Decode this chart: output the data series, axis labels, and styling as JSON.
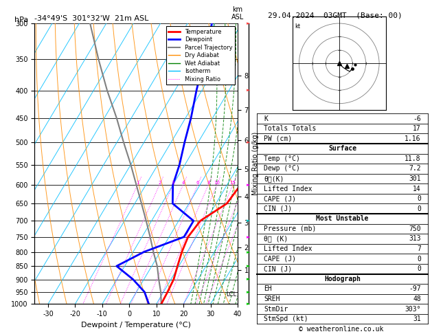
{
  "title_left": "-34°49'S  301°32'W  21m ASL",
  "title_right": "29.04.2024  03GMT  (Base: 00)",
  "xlabel": "Dewpoint / Temperature (°C)",
  "ylabel_left": "hPa",
  "pressure_levels": [
    300,
    350,
    400,
    450,
    500,
    550,
    600,
    650,
    700,
    750,
    800,
    850,
    900,
    950,
    1000
  ],
  "x_ticks": [
    -30,
    -20,
    -10,
    0,
    10,
    20,
    30,
    40
  ],
  "legend_items": [
    {
      "label": "Temperature",
      "color": "#ff0000",
      "lw": 2,
      "ls": "-"
    },
    {
      "label": "Dewpoint",
      "color": "#0000ff",
      "lw": 2,
      "ls": "-"
    },
    {
      "label": "Parcel Trajectory",
      "color": "#808080",
      "lw": 1.5,
      "ls": "-"
    },
    {
      "label": "Dry Adiabat",
      "color": "#ff8c00",
      "lw": 1,
      "ls": "-"
    },
    {
      "label": "Wet Adiabat",
      "color": "#008000",
      "lw": 1,
      "ls": "-"
    },
    {
      "label": "Isotherm",
      "color": "#00bfff",
      "lw": 1,
      "ls": "-"
    },
    {
      "label": "Mixing Ratio",
      "color": "#ff00ff",
      "lw": 0.8,
      "ls": ":"
    }
  ],
  "temperature_profile": {
    "pressure": [
      1000,
      950,
      900,
      850,
      800,
      750,
      700,
      650,
      600,
      550,
      500,
      450,
      400,
      350,
      300
    ],
    "temp": [
      11.8,
      11.5,
      11.0,
      9.5,
      8.0,
      7.0,
      8.0,
      14.0,
      15.0,
      14.0,
      12.0,
      8.0,
      3.0,
      -2.0,
      -8.0
    ]
  },
  "dewpoint_profile": {
    "pressure": [
      1000,
      950,
      900,
      850,
      800,
      750,
      700,
      650,
      600,
      550,
      500,
      450,
      400,
      350,
      300
    ],
    "dewp": [
      7.2,
      3.0,
      -4.0,
      -13.0,
      -6.0,
      5.5,
      5.5,
      -6.0,
      -10.0,
      -12.0,
      -15.0,
      -18.0,
      -22.0,
      -26.0,
      -31.0
    ]
  },
  "parcel_profile": {
    "pressure": [
      1000,
      950,
      900,
      850,
      800,
      750,
      700,
      650,
      600,
      550,
      500,
      450,
      400,
      350,
      300
    ],
    "temp": [
      11.8,
      9.0,
      5.5,
      2.0,
      -2.5,
      -7.0,
      -12.0,
      -17.5,
      -23.5,
      -30.0,
      -37.5,
      -45.5,
      -55.0,
      -65.0,
      -76.0
    ]
  },
  "km_ticks": [
    1,
    2,
    3,
    4,
    5,
    6,
    7,
    8
  ],
  "km_pressures": [
    865,
    785,
    705,
    630,
    560,
    495,
    435,
    375
  ],
  "mixing_ratio_values": [
    1,
    2,
    3,
    4,
    6,
    8,
    10,
    15,
    20,
    25
  ],
  "info_items": [
    {
      "label": "K",
      "value": "-6",
      "header": false
    },
    {
      "label": "Totals Totals",
      "value": "17",
      "header": false
    },
    {
      "label": "PW (cm)",
      "value": "1.16",
      "header": false
    },
    {
      "label": "Surface",
      "value": "",
      "header": true
    },
    {
      "label": "Temp (°C)",
      "value": "11.8",
      "header": false
    },
    {
      "label": "Dewp (°C)",
      "value": "7.2",
      "header": false
    },
    {
      "label": "θᴇ(K)",
      "value": "301",
      "header": false
    },
    {
      "label": "Lifted Index",
      "value": "14",
      "header": false
    },
    {
      "label": "CAPE (J)",
      "value": "0",
      "header": false
    },
    {
      "label": "CIN (J)",
      "value": "0",
      "header": false
    },
    {
      "label": "Most Unstable",
      "value": "",
      "header": true
    },
    {
      "label": "Pressure (mb)",
      "value": "750",
      "header": false
    },
    {
      "label": "θᴇ (K)",
      "value": "313",
      "header": false
    },
    {
      "label": "Lifted Index",
      "value": "7",
      "header": false
    },
    {
      "label": "CAPE (J)",
      "value": "0",
      "header": false
    },
    {
      "label": "CIN (J)",
      "value": "0",
      "header": false
    },
    {
      "label": "Hodograph",
      "value": "",
      "header": true
    },
    {
      "label": "EH",
      "value": "-97",
      "header": false
    },
    {
      "label": "SREH",
      "value": "48",
      "header": false
    },
    {
      "label": "StmDir",
      "value": "303°",
      "header": false
    },
    {
      "label": "StmSpd (kt)",
      "value": "31",
      "header": false
    }
  ],
  "copyright": "© weatheronline.co.uk",
  "p_min": 300,
  "p_max": 1000,
  "t_min": -35,
  "t_max": 40,
  "skew_factor": 0.82
}
